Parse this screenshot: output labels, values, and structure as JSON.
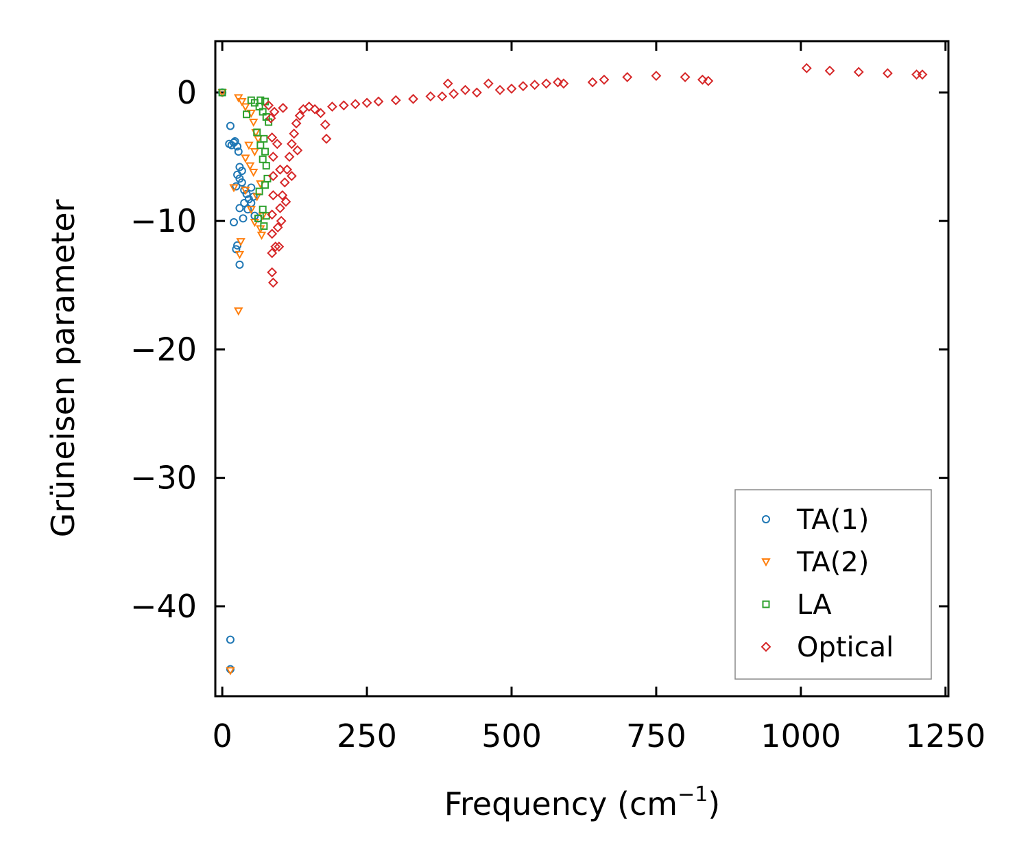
{
  "chart_data": {
    "type": "scatter",
    "title": "",
    "xlabel": "Frequency (cm",
    "xlabel_sup": "−1",
    "xlabel_end": ")",
    "ylabel": "Grüneisen parameter",
    "xlim": [
      -12,
      1255
    ],
    "ylim": [
      -47,
      4
    ],
    "xticks": [
      0,
      250,
      500,
      750,
      1000,
      1250
    ],
    "xtick_labels": [
      "0",
      "250",
      "500",
      "750",
      "1000",
      "1250"
    ],
    "yticks": [
      0,
      -10,
      -20,
      -30,
      -40
    ],
    "ytick_labels": [
      "0",
      "−10",
      "−20",
      "−30",
      "−40"
    ],
    "grid": false,
    "legend_position": "bottom-right",
    "series": [
      {
        "name": "TA(1)",
        "marker": "circle",
        "color": "#1f77b4",
        "points": [
          [
            0,
            0
          ],
          [
            14,
            -2.6
          ],
          [
            12,
            -4
          ],
          [
            16,
            -4.1
          ],
          [
            20,
            -3.9
          ],
          [
            22,
            -3.8
          ],
          [
            26,
            -4.2
          ],
          [
            28,
            -4.6
          ],
          [
            30,
            -5.8
          ],
          [
            34,
            -6.1
          ],
          [
            26,
            -6.4
          ],
          [
            30,
            -6.7
          ],
          [
            34,
            -7
          ],
          [
            24,
            -7.3
          ],
          [
            38,
            -7.6
          ],
          [
            42,
            -7.9
          ],
          [
            46,
            -8.3
          ],
          [
            50,
            -8.6
          ],
          [
            38,
            -8.6
          ],
          [
            30,
            -9
          ],
          [
            44,
            -9.1
          ],
          [
            56,
            -9.6
          ],
          [
            62,
            -9.8
          ],
          [
            36,
            -9.8
          ],
          [
            20,
            -10.1
          ],
          [
            26,
            -11.9
          ],
          [
            24,
            -12.2
          ],
          [
            30,
            -13.4
          ],
          [
            50,
            -7.4
          ],
          [
            54,
            -8.1
          ],
          [
            14,
            -42.6
          ],
          [
            14,
            -44.9
          ]
        ]
      },
      {
        "name": "TA(2)",
        "marker": "triangle-down",
        "color": "#ff7f0e",
        "points": [
          [
            0,
            0
          ],
          [
            28,
            -0.4
          ],
          [
            34,
            -0.7
          ],
          [
            40,
            -1.1
          ],
          [
            50,
            -1.6
          ],
          [
            54,
            -2.3
          ],
          [
            58,
            -3.1
          ],
          [
            62,
            -3.6
          ],
          [
            46,
            -4.1
          ],
          [
            56,
            -4.6
          ],
          [
            40,
            -5.1
          ],
          [
            48,
            -5.7
          ],
          [
            54,
            -6.2
          ],
          [
            66,
            -7.1
          ],
          [
            20,
            -7.4
          ],
          [
            40,
            -7.6
          ],
          [
            60,
            -8.1
          ],
          [
            50,
            -9.1
          ],
          [
            70,
            -9.6
          ],
          [
            56,
            -10.1
          ],
          [
            66,
            -10.6
          ],
          [
            68,
            -11.1
          ],
          [
            32,
            -11.6
          ],
          [
            30,
            -12.6
          ],
          [
            28,
            -17
          ],
          [
            14,
            -45
          ]
        ]
      },
      {
        "name": "LA",
        "marker": "square",
        "color": "#2ca02c",
        "points": [
          [
            0,
            0
          ],
          [
            42,
            -1.7
          ],
          [
            50,
            -0.6
          ],
          [
            56,
            -0.8
          ],
          [
            64,
            -1.1
          ],
          [
            70,
            -1.5
          ],
          [
            76,
            -1.9
          ],
          [
            80,
            -2.3
          ],
          [
            60,
            -3.1
          ],
          [
            72,
            -3.6
          ],
          [
            66,
            -4.1
          ],
          [
            74,
            -4.6
          ],
          [
            70,
            -5.2
          ],
          [
            76,
            -5.7
          ],
          [
            78,
            -6.7
          ],
          [
            74,
            -7.2
          ],
          [
            64,
            -7.7
          ],
          [
            70,
            -9.1
          ],
          [
            76,
            -9.6
          ],
          [
            62,
            -9.8
          ],
          [
            72,
            -10.4
          ],
          [
            74,
            -0.7
          ],
          [
            66,
            -0.6
          ]
        ]
      },
      {
        "name": "Optical",
        "marker": "diamond",
        "color": "#d62728",
        "points": [
          [
            80,
            -1
          ],
          [
            84,
            -2
          ],
          [
            86,
            -3.5
          ],
          [
            88,
            -5
          ],
          [
            88,
            -6.5
          ],
          [
            88,
            -8
          ],
          [
            86,
            -9.5
          ],
          [
            86,
            -11
          ],
          [
            86,
            -12.5
          ],
          [
            86,
            -14
          ],
          [
            88,
            -14.8
          ],
          [
            92,
            -12
          ],
          [
            96,
            -10.5
          ],
          [
            100,
            -9
          ],
          [
            104,
            -8
          ],
          [
            108,
            -7
          ],
          [
            112,
            -6
          ],
          [
            116,
            -5
          ],
          [
            120,
            -4
          ],
          [
            124,
            -3.2
          ],
          [
            128,
            -2.4
          ],
          [
            134,
            -1.8
          ],
          [
            140,
            -1.3
          ],
          [
            150,
            -1.1
          ],
          [
            160,
            -1.3
          ],
          [
            170,
            -1.6
          ],
          [
            178,
            -2.5
          ],
          [
            180,
            -3.6
          ],
          [
            190,
            -1.1
          ],
          [
            210,
            -1
          ],
          [
            230,
            -0.9
          ],
          [
            250,
            -0.8
          ],
          [
            270,
            -0.7
          ],
          [
            300,
            -0.6
          ],
          [
            330,
            -0.5
          ],
          [
            360,
            -0.3
          ],
          [
            380,
            -0.3
          ],
          [
            390,
            0.7
          ],
          [
            400,
            -0.1
          ],
          [
            420,
            0.2
          ],
          [
            440,
            0
          ],
          [
            460,
            0.7
          ],
          [
            480,
            0.2
          ],
          [
            500,
            0.3
          ],
          [
            520,
            0.5
          ],
          [
            540,
            0.6
          ],
          [
            560,
            0.7
          ],
          [
            580,
            0.8
          ],
          [
            590,
            0.7
          ],
          [
            640,
            0.8
          ],
          [
            660,
            1
          ],
          [
            700,
            1.2
          ],
          [
            750,
            1.3
          ],
          [
            800,
            1.2
          ],
          [
            830,
            1
          ],
          [
            840,
            0.9
          ],
          [
            1010,
            1.9
          ],
          [
            1050,
            1.7
          ],
          [
            1100,
            1.6
          ],
          [
            1150,
            1.5
          ],
          [
            1200,
            1.4
          ],
          [
            1210,
            1.4
          ],
          [
            98,
            -12
          ],
          [
            102,
            -10
          ],
          [
            110,
            -8.5
          ],
          [
            120,
            -6.5
          ],
          [
            130,
            -4.5
          ],
          [
            105,
            -1.2
          ],
          [
            90,
            -1.5
          ],
          [
            95,
            -4
          ],
          [
            100,
            -6
          ]
        ]
      }
    ]
  }
}
